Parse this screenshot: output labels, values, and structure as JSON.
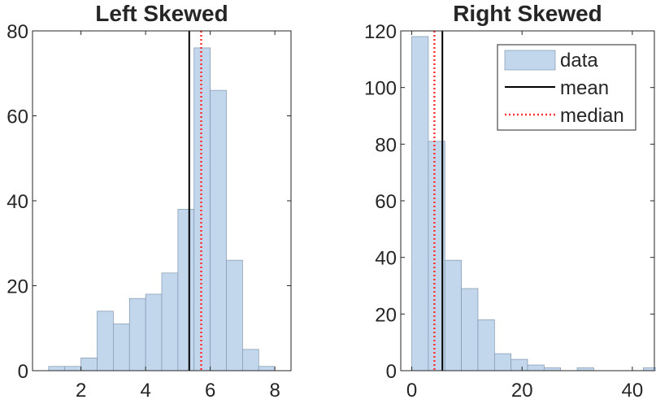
{
  "chart_data": [
    {
      "type": "bar",
      "title": "Left Skewed",
      "xlabel": "",
      "ylabel": "",
      "xlim": [
        0.5,
        8.5
      ],
      "ylim": [
        0,
        80
      ],
      "xticks": [
        2,
        4,
        6,
        8
      ],
      "yticks": [
        0,
        20,
        40,
        60,
        80
      ],
      "bin_edges": [
        1.0,
        1.5,
        2.0,
        2.5,
        3.0,
        3.5,
        4.0,
        4.5,
        5.0,
        5.5,
        6.0,
        6.5,
        7.0,
        7.5,
        8.0
      ],
      "values": [
        1,
        1,
        3,
        14,
        11,
        17,
        18,
        23,
        38,
        76,
        66,
        26,
        5,
        1
      ],
      "mean": 5.35,
      "median": 5.72,
      "grid": false,
      "legend": null
    },
    {
      "type": "bar",
      "title": "Right Skewed",
      "xlabel": "",
      "ylabel": "",
      "xlim": [
        -2,
        44
      ],
      "ylim": [
        0,
        120
      ],
      "xticks": [
        0,
        20,
        40
      ],
      "yticks": [
        0,
        20,
        40,
        60,
        80,
        100,
        120
      ],
      "bin_edges": [
        0,
        3,
        6,
        9,
        12,
        15,
        18,
        21,
        24,
        27,
        30,
        33,
        36,
        39,
        42,
        45
      ],
      "values": [
        118,
        81,
        39,
        29,
        18,
        6,
        4,
        2,
        1,
        0,
        1,
        0,
        0,
        0,
        1
      ],
      "mean": 5.55,
      "median": 4.1,
      "grid": false,
      "legend": {
        "placement": "top-right",
        "entries": [
          "data",
          "mean",
          "median"
        ]
      }
    }
  ],
  "colors": {
    "bar_fill": "#c2d7ec",
    "bar_edge": "#7f96ad",
    "mean_line": "#000000",
    "median_line": "#ff3333",
    "axis": "#262626"
  }
}
